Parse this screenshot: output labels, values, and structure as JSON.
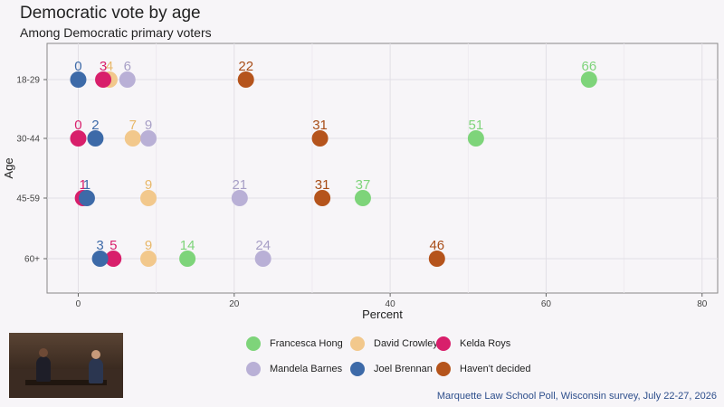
{
  "header": {
    "title": "Democratic vote by age",
    "subtitle": "Among Democratic primary voters"
  },
  "source": "Marquette Law School Poll, Wisconsin survey, July 22-27, 2026",
  "chart_data": {
    "type": "scatter",
    "title": "Democratic vote by age",
    "subtitle": "Among Democratic primary voters",
    "xlabel": "Percent",
    "ylabel": "Age",
    "xlim": [
      -4,
      82
    ],
    "xticks": [
      0,
      20,
      40,
      60,
      80
    ],
    "categories": [
      "18-29",
      "30-44",
      "45-59",
      "60+"
    ],
    "grid": true,
    "legend_position": "bottom",
    "series": [
      {
        "name": "Francesca Hong",
        "color": "#7ed47a",
        "label_color": "#7ed47a",
        "values": [
          66,
          51,
          37,
          14
        ],
        "x": [
          65.5,
          51,
          36.5,
          14
        ]
      },
      {
        "name": "David Crowley",
        "color": "#f2c88c",
        "label_color": "#e8b86a",
        "values": [
          4,
          7,
          9,
          9
        ],
        "x": [
          4,
          7,
          9,
          9
        ]
      },
      {
        "name": "Kelda Roys",
        "color": "#d81f6b",
        "label_color": "#d81f6b",
        "values": [
          3,
          0,
          1,
          5
        ],
        "x": [
          3.2,
          0,
          0.6,
          4.5
        ]
      },
      {
        "name": "Mandela Barnes",
        "color": "#b9b0d6",
        "label_color": "#a79fc6",
        "values": [
          6,
          9,
          21,
          24
        ],
        "x": [
          6.3,
          9,
          20.7,
          23.7
        ]
      },
      {
        "name": "Joel Brennan",
        "color": "#3d6aa8",
        "label_color": "#3d6aa8",
        "values": [
          0,
          2,
          1,
          3
        ],
        "x": [
          0,
          2.2,
          1.1,
          2.8
        ]
      },
      {
        "name": "Haven't decided",
        "color": "#b5541c",
        "label_color": "#a84d18",
        "values": [
          22,
          31,
          31,
          46
        ],
        "x": [
          21.5,
          31,
          31.3,
          46
        ]
      }
    ]
  },
  "video_inset": {
    "icon": "video-feed-thumbnail"
  }
}
